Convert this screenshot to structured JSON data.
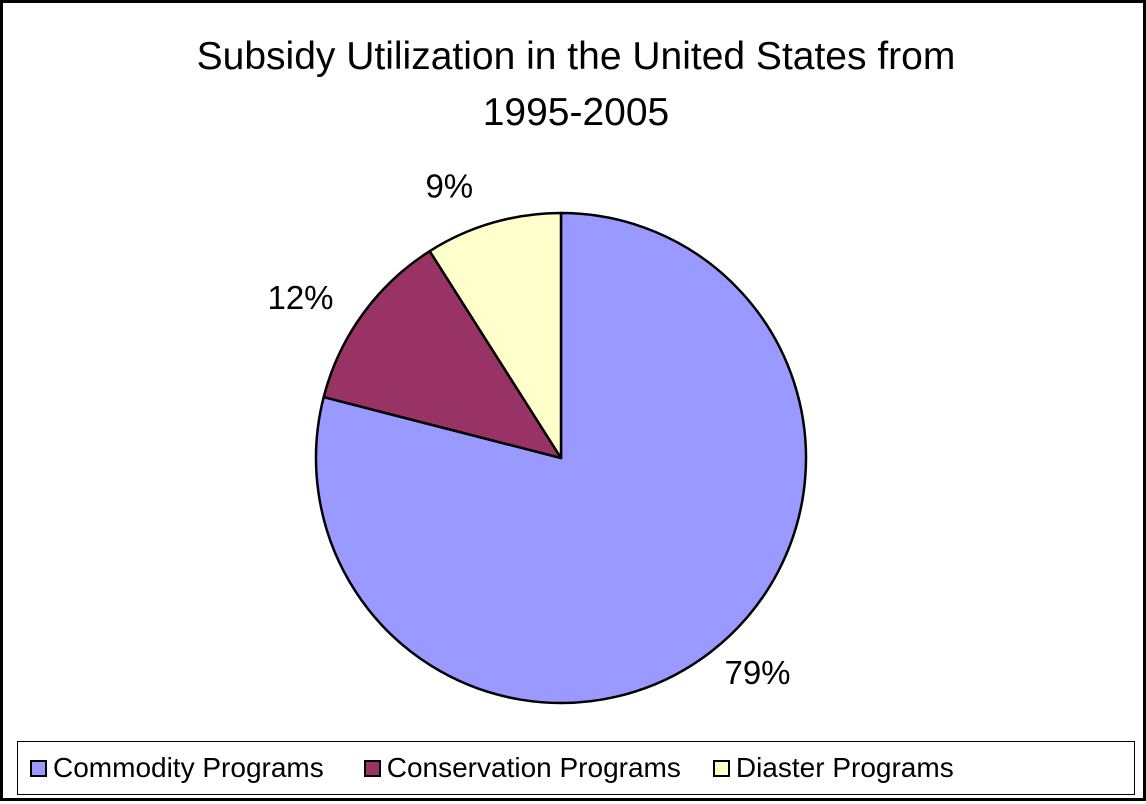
{
  "chart_data": {
    "type": "pie",
    "title": [
      "Subsidy Utilization in the United States from",
      "1995-2005"
    ],
    "categories": [
      "Commodity Programs",
      "Conservation Programs",
      "Diaster Programs"
    ],
    "values": [
      79,
      12,
      9
    ],
    "data_labels": [
      "79%",
      "12%",
      "9%"
    ],
    "colors": [
      "#9999FF",
      "#993366",
      "#FFFFCC"
    ],
    "start_angle": "12 o'clock, clockwise",
    "legend": "bottom"
  }
}
